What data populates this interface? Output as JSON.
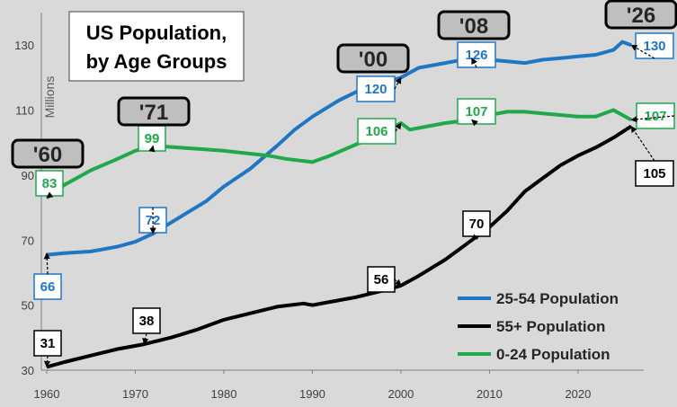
{
  "chart_data": {
    "type": "line",
    "title_lines": [
      "US Population,",
      "by Age Groups"
    ],
    "ylabel": "Millions",
    "xlim": [
      1960,
      2026
    ],
    "ylim": [
      30,
      140
    ],
    "xticks": [
      1960,
      1970,
      1980,
      1990,
      2000,
      2010,
      2020
    ],
    "yticks": [
      30,
      50,
      70,
      90,
      110,
      130
    ],
    "grid": "none",
    "legend_position": "bottom-right",
    "series": [
      {
        "name": "25-54 Population",
        "color": "#1f77c4",
        "points": [
          [
            1960,
            65.5
          ],
          [
            1962,
            66
          ],
          [
            1965,
            66.5
          ],
          [
            1968,
            68
          ],
          [
            1970,
            69.5
          ],
          [
            1972,
            72
          ],
          [
            1975,
            77
          ],
          [
            1978,
            82
          ],
          [
            1980,
            86.5
          ],
          [
            1983,
            92
          ],
          [
            1986,
            99
          ],
          [
            1988,
            104
          ],
          [
            1990,
            108
          ],
          [
            1993,
            113
          ],
          [
            1996,
            117
          ],
          [
            1998,
            118.5
          ],
          [
            2000,
            120
          ],
          [
            2002,
            123
          ],
          [
            2005,
            124.5
          ],
          [
            2008,
            126
          ],
          [
            2010,
            125.5
          ],
          [
            2012,
            125
          ],
          [
            2014,
            124.5
          ],
          [
            2016,
            125.5
          ],
          [
            2018,
            126
          ],
          [
            2020,
            126.5
          ],
          [
            2022,
            127
          ],
          [
            2024,
            128.5
          ],
          [
            2025,
            131
          ],
          [
            2026,
            130
          ]
        ]
      },
      {
        "name": "55+ Population",
        "color": "#000000",
        "points": [
          [
            1960,
            31
          ],
          [
            1962,
            32.5
          ],
          [
            1965,
            34.5
          ],
          [
            1968,
            36.5
          ],
          [
            1971,
            38
          ],
          [
            1974,
            40
          ],
          [
            1977,
            42.5
          ],
          [
            1980,
            45.5
          ],
          [
            1983,
            47.5
          ],
          [
            1986,
            49.5
          ],
          [
            1989,
            50.5
          ],
          [
            1990,
            50
          ],
          [
            1992,
            51
          ],
          [
            1995,
            52.5
          ],
          [
            1998,
            54.5
          ],
          [
            2000,
            56
          ],
          [
            2002,
            59
          ],
          [
            2005,
            64
          ],
          [
            2008,
            70
          ],
          [
            2010,
            74
          ],
          [
            2012,
            79
          ],
          [
            2014,
            85
          ],
          [
            2016,
            89
          ],
          [
            2018,
            93
          ],
          [
            2020,
            96
          ],
          [
            2022,
            98.5
          ],
          [
            2024,
            101.5
          ],
          [
            2026,
            105
          ]
        ]
      },
      {
        "name": "0-24 Population",
        "color": "#1fa94a",
        "points": [
          [
            1960,
            83
          ],
          [
            1962,
            87
          ],
          [
            1965,
            91.5
          ],
          [
            1968,
            95
          ],
          [
            1970,
            97.5
          ],
          [
            1972,
            99
          ],
          [
            1975,
            98.5
          ],
          [
            1980,
            97.5
          ],
          [
            1985,
            96
          ],
          [
            1987,
            95
          ],
          [
            1990,
            94
          ],
          [
            1992,
            96
          ],
          [
            1995,
            99.5
          ],
          [
            1998,
            103
          ],
          [
            2000,
            106
          ],
          [
            2001,
            104
          ],
          [
            2003,
            105
          ],
          [
            2005,
            106
          ],
          [
            2008,
            107
          ],
          [
            2010,
            108.5
          ],
          [
            2012,
            109.5
          ],
          [
            2014,
            109.5
          ],
          [
            2016,
            109
          ],
          [
            2018,
            108.5
          ],
          [
            2020,
            108
          ],
          [
            2022,
            108
          ],
          [
            2024,
            110
          ],
          [
            2025,
            108.5
          ],
          [
            2026,
            107
          ]
        ]
      }
    ],
    "annotations": [
      {
        "series": "25-54 Population",
        "label": "66",
        "x": 1960,
        "y": 66
      },
      {
        "series": "25-54 Population",
        "label": "72",
        "x": 1972,
        "y": 72
      },
      {
        "series": "25-54 Population",
        "label": "120",
        "x": 2000,
        "y": 120
      },
      {
        "series": "25-54 Population",
        "label": "126",
        "x": 2008,
        "y": 126
      },
      {
        "series": "25-54 Population",
        "label": "130",
        "x": 2026,
        "y": 130
      },
      {
        "series": "55+ Population",
        "label": "31",
        "x": 1960,
        "y": 31
      },
      {
        "series": "55+ Population",
        "label": "38",
        "x": 1971,
        "y": 38
      },
      {
        "series": "55+ Population",
        "label": "56",
        "x": 2000,
        "y": 56
      },
      {
        "series": "55+ Population",
        "label": "70",
        "x": 2008,
        "y": 70
      },
      {
        "series": "55+ Population",
        "label": "105",
        "x": 2026,
        "y": 105
      },
      {
        "series": "0-24 Population",
        "label": "83",
        "x": 1960,
        "y": 83
      },
      {
        "series": "0-24 Population",
        "label": "99",
        "x": 1972,
        "y": 99
      },
      {
        "series": "0-24 Population",
        "label": "106",
        "x": 2000,
        "y": 106
      },
      {
        "series": "0-24 Population",
        "label": "107",
        "x": 2008,
        "y": 107
      },
      {
        "series": "0-24 Population",
        "label": "107",
        "x": 2026,
        "y": 107
      }
    ],
    "year_labels": [
      "'60",
      "'71",
      "'00",
      "'08",
      "'26"
    ]
  }
}
